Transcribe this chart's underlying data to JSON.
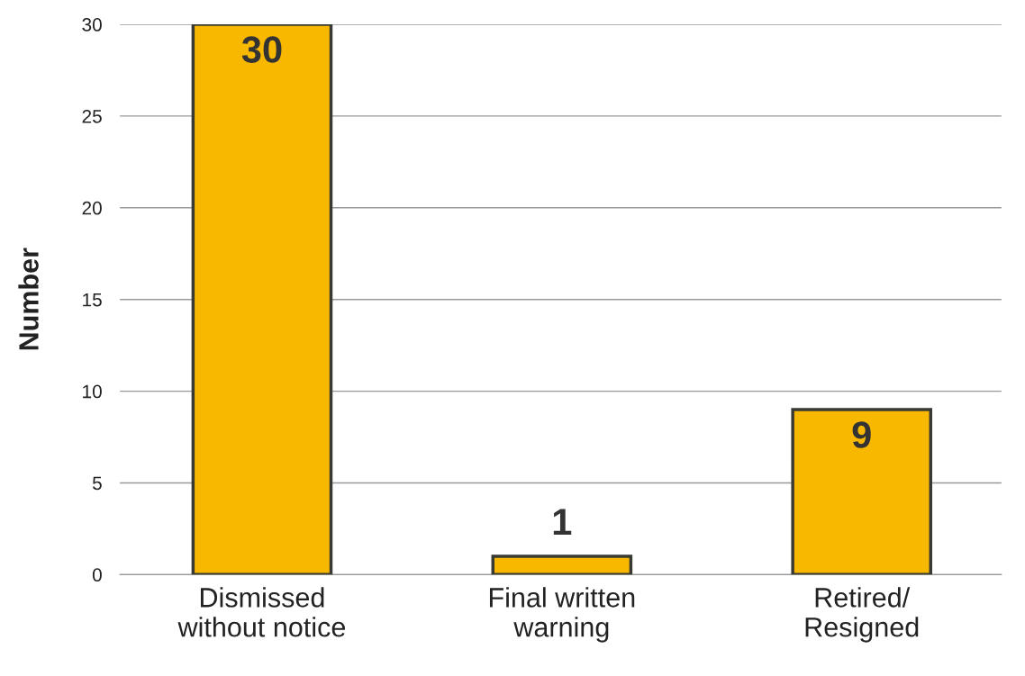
{
  "chart_data": {
    "type": "bar",
    "ylabel": "Number",
    "categories": [
      "Dismissed\nwithout notice",
      "Final written\nwarning",
      "Retired/\nResigned"
    ],
    "values": [
      30,
      1,
      9
    ],
    "color": "#f9b800",
    "ylim": [
      0,
      30
    ],
    "yticks": [
      0,
      5,
      10,
      15,
      20,
      25,
      30
    ],
    "grid": "y",
    "data_labels": true
  }
}
